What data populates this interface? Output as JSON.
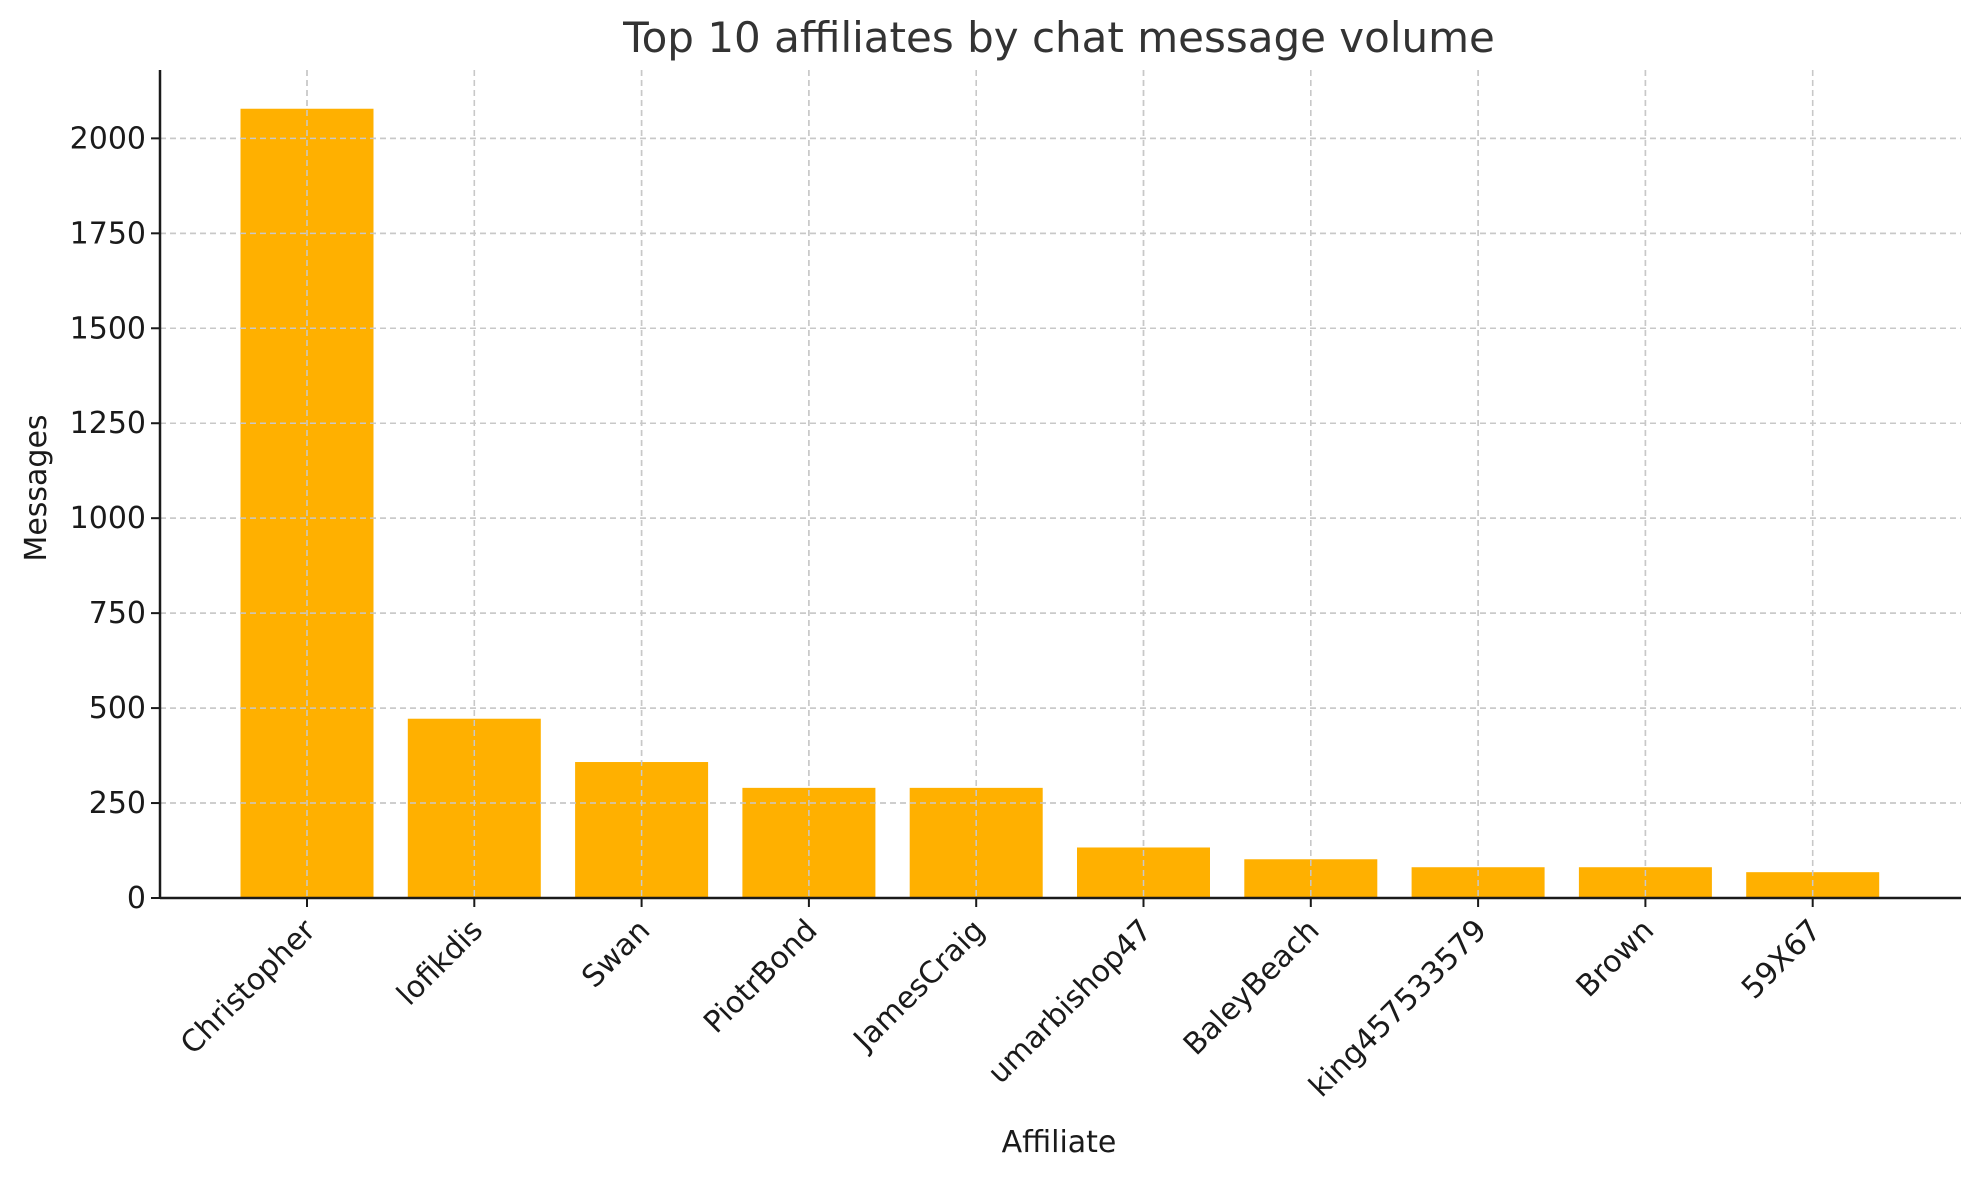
{
  "chart_data": {
    "type": "bar",
    "title": "Top 10 affiliates by chat message volume",
    "xlabel": "Affiliate",
    "ylabel": "Messages",
    "categories": [
      "Christopher",
      "lofikdis",
      "Swan",
      "PiotrBond",
      "JamesCraig",
      "umarbishop47",
      "BaleyBeach",
      "king457533579",
      "Brown",
      "59X67"
    ],
    "values": [
      2078,
      472,
      358,
      290,
      290,
      133,
      102,
      81,
      81,
      68
    ],
    "ylim": [
      0,
      2180
    ],
    "yticks": [
      0,
      250,
      500,
      750,
      1000,
      1250,
      1500,
      1750,
      2000
    ],
    "grid": true,
    "bar_color": "#FFB000"
  }
}
